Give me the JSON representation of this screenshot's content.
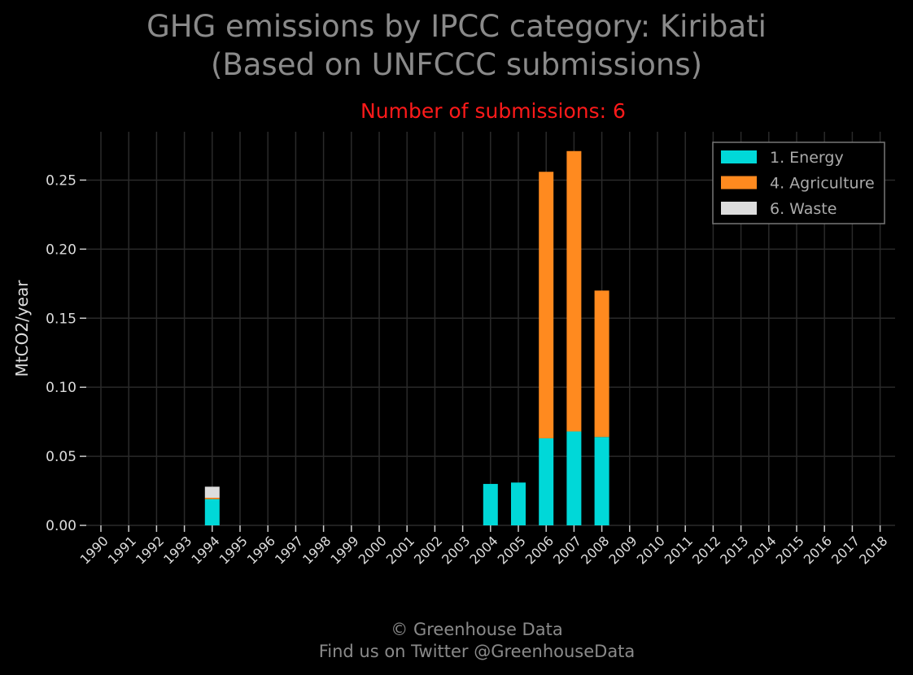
{
  "title_line1": "GHG emissions by IPCC category: Kiribati",
  "title_line2": "(Based on UNFCCC submissions)",
  "subtitle": "Number of submissions: 6",
  "footer_line1": "© Greenhouse Data",
  "footer_line2": "Find us on Twitter @GreenhouseData",
  "chart_data": {
    "type": "bar",
    "stacked": true,
    "categories": [
      "1990",
      "1991",
      "1992",
      "1993",
      "1994",
      "1995",
      "1996",
      "1997",
      "1998",
      "1999",
      "2000",
      "2001",
      "2002",
      "2003",
      "2004",
      "2005",
      "2006",
      "2007",
      "2008",
      "2009",
      "2010",
      "2011",
      "2012",
      "2013",
      "2014",
      "2015",
      "2016",
      "2017",
      "2018"
    ],
    "series": [
      {
        "name": "1. Energy",
        "color": "#00d8d8",
        "values": [
          0,
          0,
          0,
          0,
          0.019,
          0,
          0,
          0,
          0,
          0,
          0,
          0,
          0,
          0,
          0.03,
          0.031,
          0.063,
          0.068,
          0.064,
          0,
          0,
          0,
          0,
          0,
          0,
          0,
          0,
          0,
          0
        ]
      },
      {
        "name": "4. Agriculture",
        "color": "#ff8a1f",
        "values": [
          0,
          0,
          0,
          0,
          0.001,
          0,
          0,
          0,
          0,
          0,
          0,
          0,
          0,
          0,
          0,
          0,
          0.193,
          0.203,
          0.106,
          0,
          0,
          0,
          0,
          0,
          0,
          0,
          0,
          0,
          0
        ]
      },
      {
        "name": "6. Waste",
        "color": "#dddddd",
        "values": [
          0,
          0,
          0,
          0,
          0.008,
          0,
          0,
          0,
          0,
          0,
          0,
          0,
          0,
          0,
          0,
          0,
          0,
          0,
          0,
          0,
          0,
          0,
          0,
          0,
          0,
          0,
          0,
          0,
          0
        ]
      }
    ],
    "ylabel": "MtCO2/year",
    "xlabel": "",
    "ylim": [
      0,
      0.285
    ],
    "yticks": [
      "0.00",
      "0.05",
      "0.10",
      "0.15",
      "0.20",
      "0.25"
    ],
    "grid": true,
    "legend_position": "top-right"
  }
}
